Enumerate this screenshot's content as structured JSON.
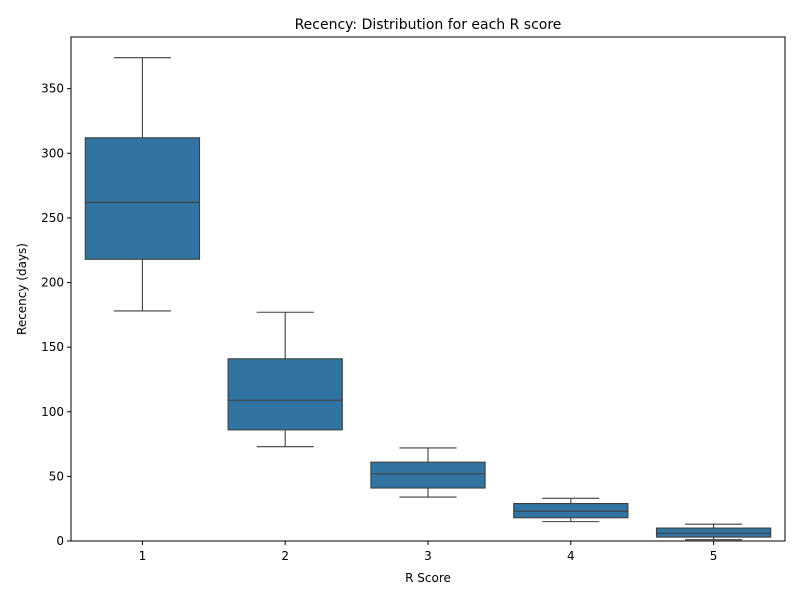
{
  "chart_data": {
    "type": "box",
    "title": "Recency: Distribution for each R score",
    "xlabel": "R Score",
    "ylabel": "Recency (days)",
    "categories": [
      "1",
      "2",
      "3",
      "4",
      "5"
    ],
    "ylim": [
      0,
      390
    ],
    "yticks": [
      0,
      50,
      100,
      150,
      200,
      250,
      300,
      350
    ],
    "grid": false,
    "box_color": "#3274a1",
    "edge_color": "#3f3f3f",
    "boxes": [
      {
        "category": "1",
        "min": 178,
        "q1": 218,
        "median": 262,
        "q3": 312,
        "max": 374
      },
      {
        "category": "2",
        "min": 73,
        "q1": 86,
        "median": 109,
        "q3": 141,
        "max": 177
      },
      {
        "category": "3",
        "min": 34,
        "q1": 41,
        "median": 52,
        "q3": 61,
        "max": 72
      },
      {
        "category": "4",
        "min": 15,
        "q1": 18,
        "median": 23,
        "q3": 29,
        "max": 33
      },
      {
        "category": "5",
        "min": 1,
        "q1": 3,
        "median": 6,
        "q3": 10,
        "max": 13
      }
    ]
  }
}
